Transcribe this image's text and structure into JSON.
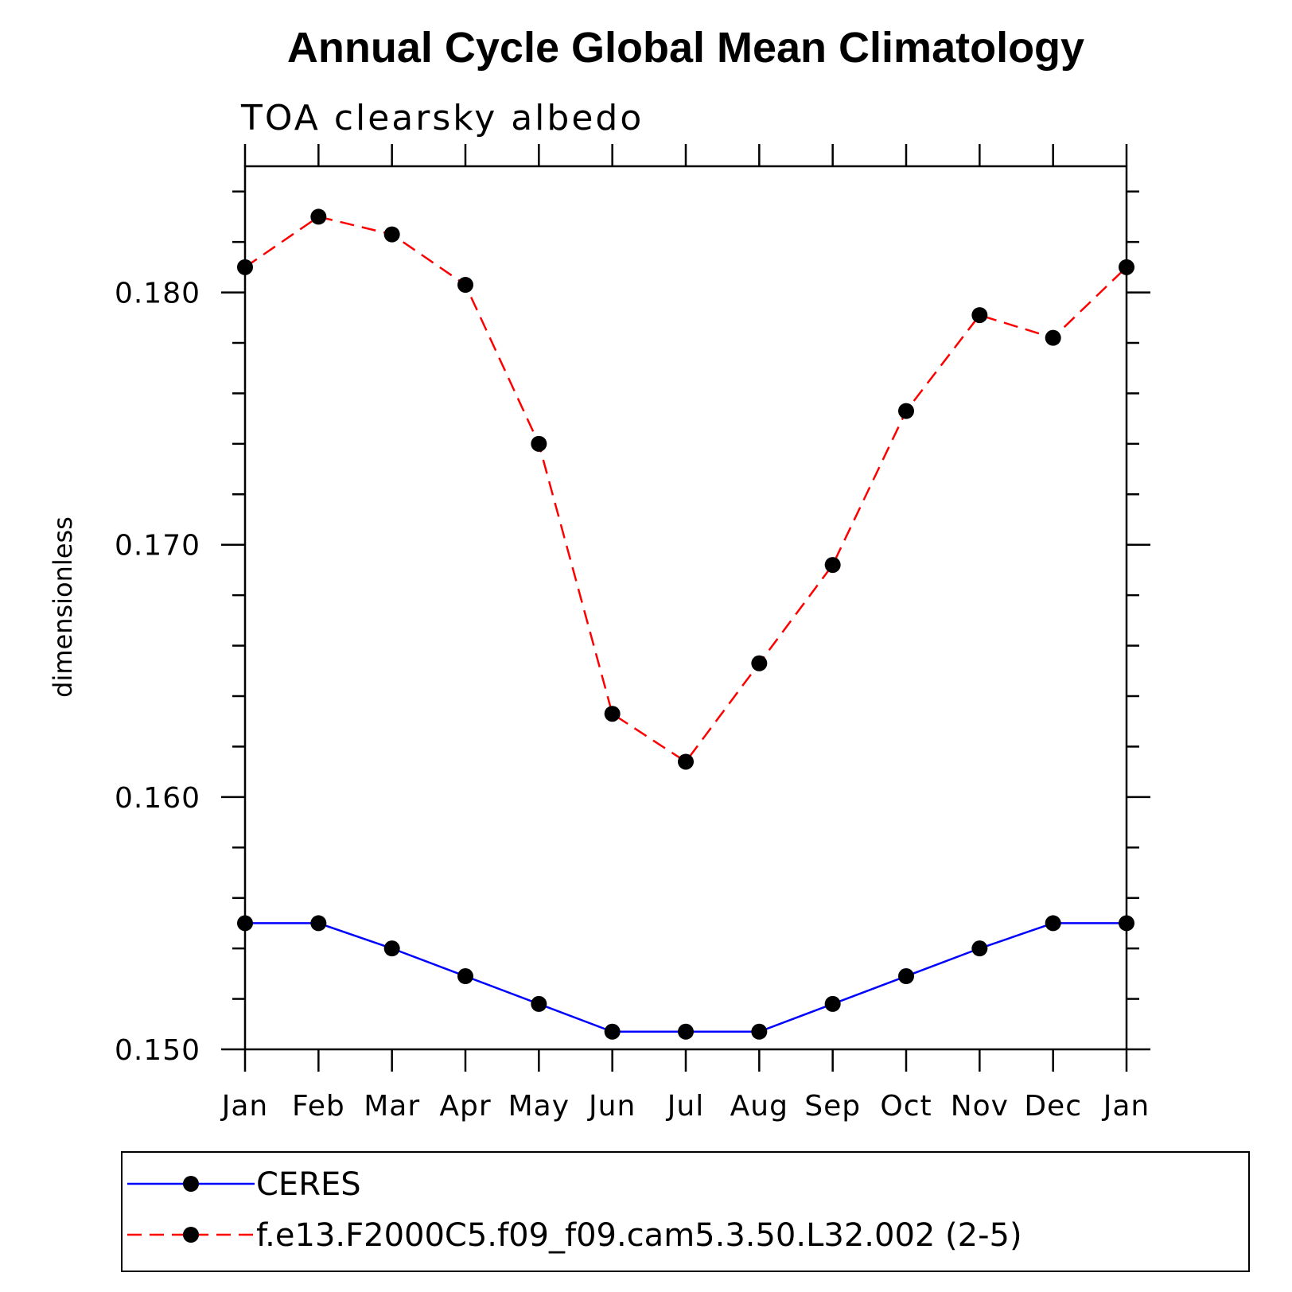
{
  "chart_data": {
    "type": "line",
    "title": "Annual Cycle Global Mean Climatology",
    "subtitle": "TOA clearsky albedo",
    "ylabel": "dimensionless",
    "xlabel": "",
    "categories": [
      "Jan",
      "Feb",
      "Mar",
      "Apr",
      "May",
      "Jun",
      "Jul",
      "Aug",
      "Sep",
      "Oct",
      "Nov",
      "Dec",
      "Jan"
    ],
    "ylim": [
      0.15,
      0.185
    ],
    "yticks": [
      0.15,
      0.16,
      0.17,
      0.18
    ],
    "ytick_labels": [
      "0.150",
      "0.160",
      "0.170",
      "0.180"
    ],
    "grid": false,
    "legend_position": "bottom",
    "series": [
      {
        "name": "CERES",
        "color": "#0000ff",
        "dash": "solid",
        "marker": "filled-circle",
        "values": [
          0.155,
          0.155,
          0.154,
          0.1529,
          0.1518,
          0.1507,
          0.1507,
          0.1507,
          0.1518,
          0.1529,
          0.154,
          0.155,
          0.155
        ]
      },
      {
        "name": "f.e13.F2000C5.f09_f09.cam5.3.50.L32.002 (2-5)",
        "color": "#ff0000",
        "dash": "dashed",
        "marker": "filled-circle",
        "values": [
          0.181,
          0.183,
          0.1823,
          0.1803,
          0.174,
          0.1633,
          0.1614,
          0.1653,
          0.1692,
          0.1753,
          0.1791,
          0.1782,
          0.181
        ]
      }
    ]
  }
}
